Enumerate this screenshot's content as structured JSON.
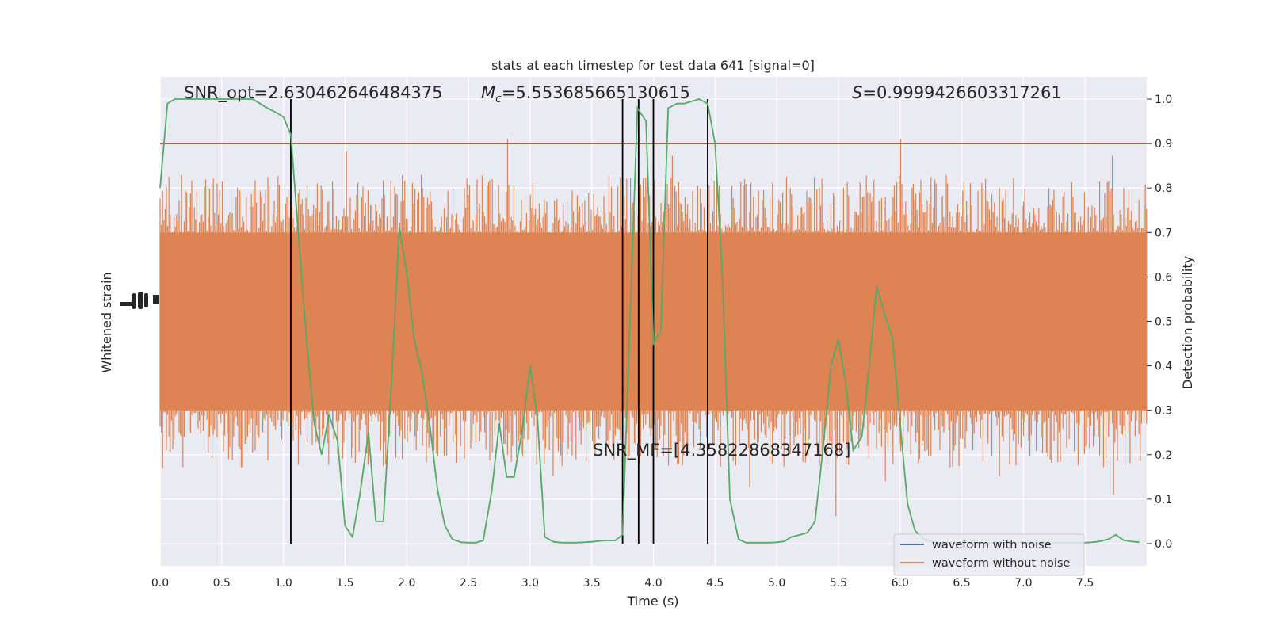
{
  "chart_data": {
    "type": "line",
    "title": "stats at each timestep for test data 641 [signal=0]",
    "xlabel": "Time (s)",
    "ylabel_left": "Whitened strain",
    "ylabel_right": "Detection probability",
    "xlim": [
      0,
      8
    ],
    "ylim_right": [
      -0.05,
      1.05
    ],
    "x_ticks": [
      "0.0",
      "0.5",
      "1.0",
      "1.5",
      "2.0",
      "2.5",
      "3.0",
      "3.5",
      "4.0",
      "4.5",
      "5.0",
      "5.5",
      "6.0",
      "6.5",
      "7.0",
      "7.5"
    ],
    "y_ticks_right": [
      "0.0",
      "0.1",
      "0.2",
      "0.3",
      "0.4",
      "0.5",
      "0.6",
      "0.7",
      "0.8",
      "0.9",
      "1.0"
    ],
    "grid": true,
    "threshold": {
      "value": 0.9,
      "color": "#c0392b"
    },
    "vertical_lines": [
      1.06,
      3.75,
      3.88,
      4.0,
      4.44
    ],
    "annotations": {
      "snr_opt": "SNR_opt=2.630462646484375",
      "mc_symbol": "M",
      "mc_sub": "c",
      "mc_value": "=5.553685665130615",
      "s_symbol": "S",
      "s_value": "=0.9999426603317261",
      "snr_mf": "SNR_MF=[4.35822868347168]"
    },
    "legend": {
      "position": "lower-right",
      "entries": [
        {
          "label": "waveform with noise",
          "color": "#4c72b0"
        },
        {
          "label": "waveform without noise",
          "color": "#dd8452"
        }
      ]
    },
    "series": [
      {
        "name": "waveform with noise",
        "color": "#4c72b0",
        "note": "hidden behind orange trace"
      },
      {
        "name": "waveform without noise",
        "color": "#dd8452",
        "band_center": 0.5,
        "band_halfwidth": 0.2
      },
      {
        "color": "#55a868",
        "x": [
          0,
          0.06,
          0.12,
          0.19,
          0.25,
          0.31,
          0.37,
          0.44,
          0.5,
          0.56,
          0.62,
          0.69,
          0.75,
          0.81,
          0.87,
          0.94,
          1.0,
          1.06,
          1.12,
          1.19,
          1.25,
          1.31,
          1.37,
          1.44,
          1.5,
          1.56,
          1.62,
          1.69,
          1.75,
          1.81,
          1.87,
          1.94,
          2.0,
          2.06,
          2.12,
          2.19,
          2.25,
          2.31,
          2.37,
          2.44,
          2.5,
          2.56,
          2.62,
          2.69,
          2.75,
          2.81,
          2.87,
          2.94,
          3.0,
          3.06,
          3.12,
          3.19,
          3.25,
          3.31,
          3.37,
          3.44,
          3.5,
          3.56,
          3.62,
          3.69,
          3.75,
          3.81,
          3.87,
          3.94,
          4.0,
          4.06,
          4.12,
          4.19,
          4.25,
          4.31,
          4.37,
          4.44,
          4.5,
          4.56,
          4.62,
          4.69,
          4.75,
          4.81,
          4.87,
          4.94,
          5.0,
          5.06,
          5.12,
          5.19,
          5.25,
          5.31,
          5.37,
          5.44,
          5.5,
          5.56,
          5.62,
          5.69,
          5.75,
          5.81,
          5.87,
          5.94,
          6.0,
          6.06,
          6.12,
          6.19,
          6.25,
          6.31,
          6.37,
          6.44,
          6.5,
          6.56,
          6.62,
          6.69,
          6.75,
          6.81,
          6.87,
          6.94,
          7.0,
          7.06,
          7.12,
          7.19,
          7.25,
          7.31,
          7.37,
          7.44,
          7.5,
          7.56,
          7.62,
          7.69,
          7.75,
          7.81,
          7.87,
          7.94
        ],
        "values": [
          0.8,
          0.99,
          1.0,
          1.0,
          1.0,
          1.0,
          1.0,
          1.0,
          1.0,
          1.0,
          1.0,
          1.0,
          1.0,
          0.99,
          0.98,
          0.97,
          0.96,
          0.92,
          0.7,
          0.45,
          0.27,
          0.2,
          0.29,
          0.23,
          0.04,
          0.015,
          0.11,
          0.25,
          0.05,
          0.05,
          0.33,
          0.71,
          0.61,
          0.46,
          0.39,
          0.26,
          0.12,
          0.04,
          0.01,
          0.003,
          0.002,
          0.002,
          0.007,
          0.12,
          0.27,
          0.15,
          0.15,
          0.26,
          0.4,
          0.28,
          0.015,
          0.004,
          0.002,
          0.002,
          0.002,
          0.003,
          0.004,
          0.006,
          0.007,
          0.007,
          0.02,
          0.5,
          0.98,
          0.95,
          0.45,
          0.48,
          0.98,
          0.99,
          0.99,
          0.995,
          1.0,
          0.99,
          0.9,
          0.6,
          0.1,
          0.01,
          0.002,
          0.002,
          0.002,
          0.002,
          0.003,
          0.005,
          0.015,
          0.02,
          0.025,
          0.05,
          0.2,
          0.4,
          0.46,
          0.36,
          0.21,
          0.24,
          0.4,
          0.58,
          0.52,
          0.46,
          0.27,
          0.09,
          0.03,
          0.01,
          0.005,
          0.002,
          0.002,
          0.002,
          0.002,
          0.002,
          0.002,
          0.002,
          0.002,
          0.002,
          0.002,
          0.002,
          0.002,
          0.002,
          0.002,
          0.002,
          0.002,
          0.002,
          0.002,
          0.002,
          0.002,
          0.003,
          0.005,
          0.01,
          0.02,
          0.008,
          0.005,
          0.003
        ]
      }
    ]
  }
}
